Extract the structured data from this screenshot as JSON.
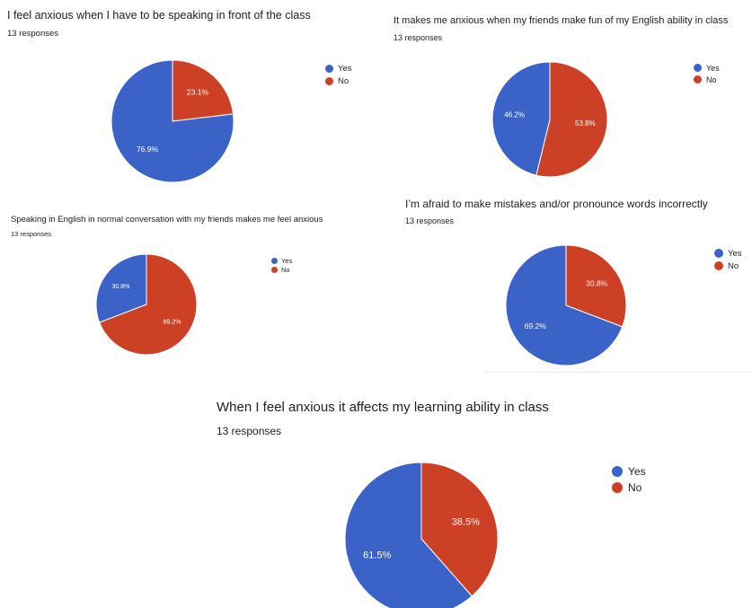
{
  "colors": {
    "yes": "#3b63c7",
    "no": "#cc4125",
    "text": "#202124"
  },
  "charts": [
    {
      "title": "I feel anxious when I have to be speaking in front of the class",
      "subtitle": "13 responses",
      "legend": [
        "Yes",
        "No"
      ],
      "labels": [
        "76.9%",
        "23.1%"
      ]
    },
    {
      "title": "It makes me anxious when my friends make fun of my English ability in class",
      "subtitle": "13 responses",
      "legend": [
        "Yes",
        "No"
      ],
      "labels": [
        "46.2%",
        "53.8%"
      ]
    },
    {
      "title": "Speaking in English in normal conversation with my friends makes me feel anxious",
      "subtitle": "13 responses",
      "legend": [
        "Yes",
        "No"
      ],
      "labels": [
        "30.8%",
        "69.2%"
      ]
    },
    {
      "title": "I’m afraid to make mistakes and/or pronounce words incorrectly",
      "subtitle": "13 responses",
      "legend": [
        "Yes",
        "No"
      ],
      "labels": [
        "69.2%",
        "30.8%"
      ]
    },
    {
      "title": "When I feel anxious it affects my learning ability in class",
      "subtitle": "13 responses",
      "legend": [
        "Yes",
        "No"
      ],
      "labels": [
        "61.5%",
        "38.5%"
      ]
    }
  ],
  "chart_data": [
    {
      "type": "pie",
      "title": "I feel anxious when I have to be speaking in front of the class",
      "categories": [
        "Yes",
        "No"
      ],
      "values": [
        76.9,
        23.1
      ],
      "total_responses": 13,
      "legend_position": "top-right"
    },
    {
      "type": "pie",
      "title": "It makes me anxious when my friends make fun of my English ability in class",
      "categories": [
        "Yes",
        "No"
      ],
      "values": [
        46.2,
        53.8
      ],
      "total_responses": 13,
      "legend_position": "top-right"
    },
    {
      "type": "pie",
      "title": "Speaking in English in normal conversation with my friends makes me feel anxious",
      "categories": [
        "Yes",
        "No"
      ],
      "values": [
        30.8,
        69.2
      ],
      "total_responses": 13,
      "legend_position": "top-right"
    },
    {
      "type": "pie",
      "title": "I’m afraid to make mistakes and/or pronounce words incorrectly",
      "categories": [
        "Yes",
        "No"
      ],
      "values": [
        69.2,
        30.8
      ],
      "total_responses": 13,
      "legend_position": "top-right"
    },
    {
      "type": "pie",
      "title": "When I feel anxious it affects my learning ability in class",
      "categories": [
        "Yes",
        "No"
      ],
      "values": [
        61.5,
        38.5
      ],
      "total_responses": 13,
      "legend_position": "top-right"
    }
  ]
}
